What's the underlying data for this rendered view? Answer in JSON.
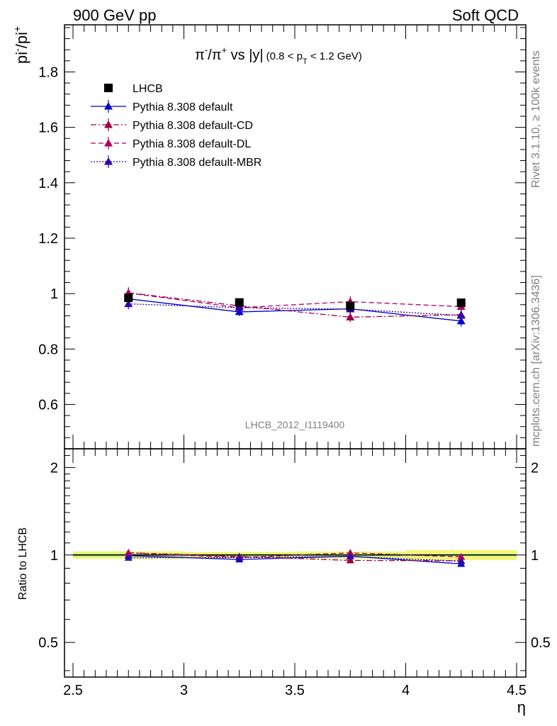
{
  "header": {
    "left": "900 GeV pp",
    "right": "Soft QCD"
  },
  "side_text": {
    "rivet": "Rivet 3.1.10, ≥ 100k events",
    "source": "mcplots.cern.ch [arXiv:1306.3436]"
  },
  "watermark": "LHCB_2012_I1119400",
  "colors": {
    "data": "#000000",
    "default": "#0000cc",
    "cd": "#9b0040",
    "dl": "#b0005f",
    "mbr": "#3300aa",
    "band_inner": "#a8ee80",
    "band_outer": "#f4f47a"
  },
  "chart_data": [
    {
      "type": "line",
      "title_parts": {
        "pi": "π",
        "minus": "-",
        "slash": "/",
        "plus": "+",
        "vs": " vs |y|",
        "cut_open": "(0.8 < p",
        "cut_sub": "T",
        "cut_close": " < 1.2 GeV)"
      },
      "ylabel_parts": {
        "a": "pi",
        "a_sup": "-",
        "b": "/pi",
        "b_sup": "+"
      },
      "xlim": [
        2.5,
        4.5
      ],
      "ylim": [
        0.44,
        1.97
      ],
      "y_ticks": [
        0.6,
        0.8,
        1,
        1.2,
        1.4,
        1.6,
        1.8
      ],
      "y_tick_labels": [
        "0.6",
        "0.8",
        "1",
        "1.2",
        "1.4",
        "1.6",
        "1.8"
      ],
      "x": [
        2.75,
        3.25,
        3.75,
        4.25
      ],
      "legend_position": "top-left",
      "series": [
        {
          "name": "LHCB",
          "key": "data",
          "values": [
            0.985,
            0.968,
            0.955,
            0.967
          ],
          "errors": [
            0.012,
            0.01,
            0.012,
            0.01
          ]
        },
        {
          "name": "Pythia 8.308 default",
          "key": "default",
          "values": [
            0.981,
            0.934,
            0.945,
            0.901
          ],
          "errors": [
            0.02,
            0.015,
            0.015,
            0.02
          ]
        },
        {
          "name": "Pythia 8.308 default-CD",
          "key": "cd",
          "values": [
            1.003,
            0.956,
            0.915,
            0.924
          ],
          "errors": [
            0.02,
            0.015,
            0.018,
            0.02
          ]
        },
        {
          "name": "Pythia 8.308 default-DL",
          "key": "dl",
          "values": [
            1.002,
            0.949,
            0.971,
            0.953
          ],
          "errors": [
            0.02,
            0.015,
            0.02,
            0.02
          ]
        },
        {
          "name": "Pythia 8.308 default-MBR",
          "key": "mbr",
          "values": [
            0.963,
            0.949,
            0.944,
            0.921
          ],
          "errors": [
            0.02,
            0.015,
            0.015,
            0.02
          ]
        }
      ]
    },
    {
      "type": "line",
      "ylabel": "Ratio to LHCB",
      "xlabel": "η",
      "xlim": [
        2.5,
        4.5
      ],
      "ylim": [
        0.38,
        2.32
      ],
      "y_scale": "log",
      "y_ticks": [
        0.5,
        1,
        2
      ],
      "y_tick_labels": [
        "0.5",
        "1",
        "2"
      ],
      "x_ticks": [
        2.5,
        3,
        3.5,
        4,
        4.5
      ],
      "x_tick_labels": [
        "2.5",
        "3",
        "3.5",
        "4",
        "4.5"
      ],
      "x": [
        2.75,
        3.25,
        3.75,
        4.25
      ],
      "reference_band": {
        "inner": [
          0.012,
          0.01,
          0.012,
          0.01
        ],
        "outer": [
          0.03,
          0.025,
          0.028,
          0.04
        ]
      },
      "series": [
        {
          "name": "Pythia 8.308 default",
          "key": "default",
          "values": [
            0.995,
            0.965,
            0.99,
            0.932
          ]
        },
        {
          "name": "Pythia 8.308 default-CD",
          "key": "cd",
          "values": [
            1.018,
            0.988,
            0.958,
            0.955
          ]
        },
        {
          "name": "Pythia 8.308 default-DL",
          "key": "dl",
          "values": [
            1.017,
            0.98,
            1.017,
            0.985
          ]
        },
        {
          "name": "Pythia 8.308 default-MBR",
          "key": "mbr",
          "values": [
            0.978,
            0.98,
            0.988,
            0.952
          ]
        }
      ]
    }
  ]
}
